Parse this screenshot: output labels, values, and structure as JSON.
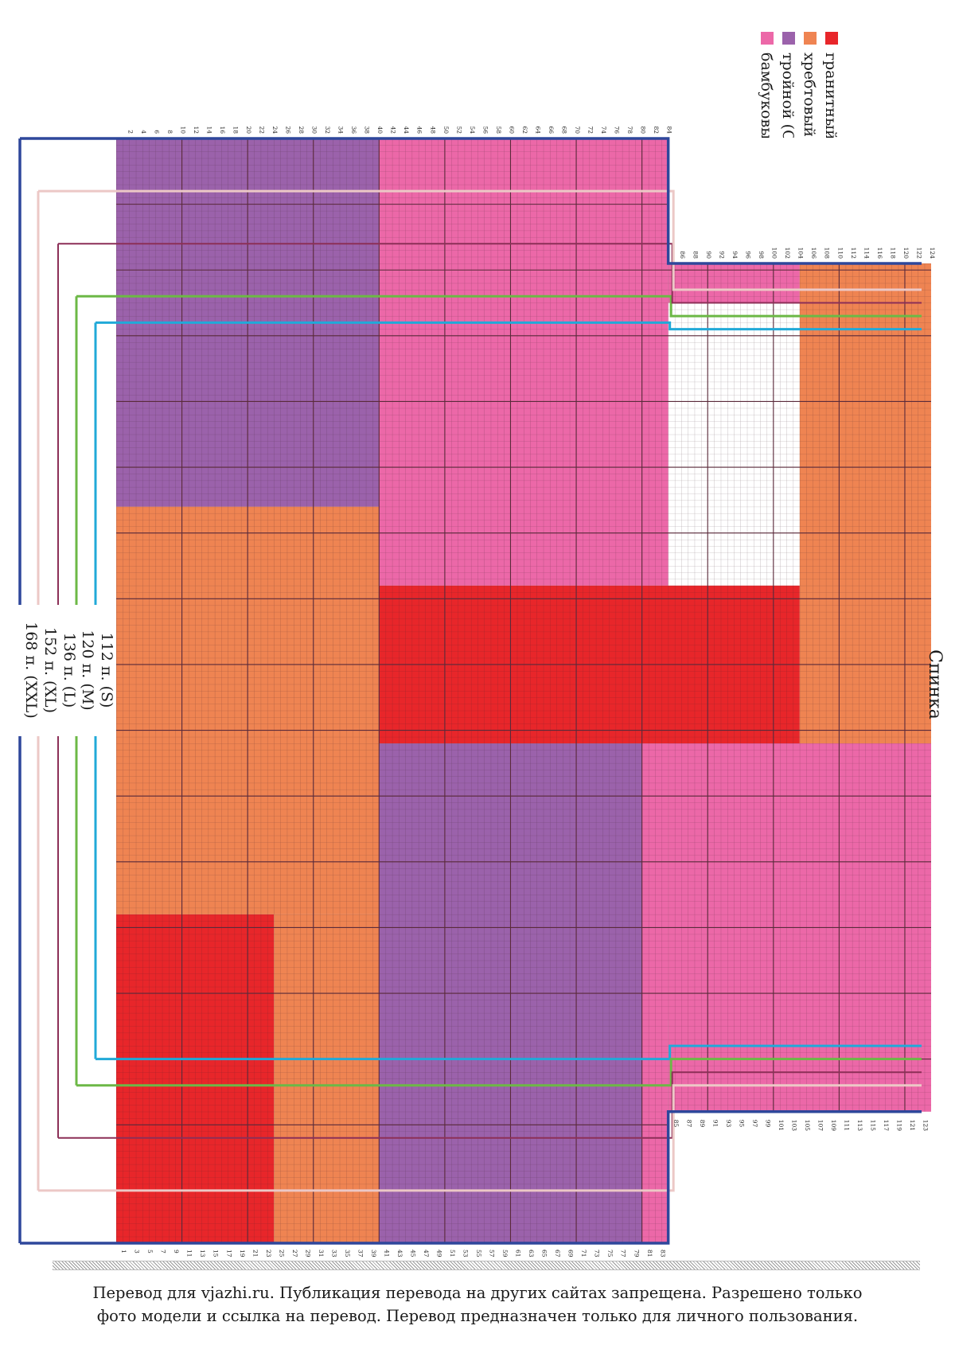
{
  "title": "Спинка",
  "legend": [
    {
      "label": "гранитный (A)",
      "color": "#e8262a"
    },
    {
      "label": "хребтовый (B)",
      "color": "#ef8452"
    },
    {
      "label": "тройной (C)",
      "color": "#9b62ab"
    },
    {
      "label": "бамбуковый (D)",
      "color": "#ec68a8"
    }
  ],
  "sizes": [
    {
      "label": "112 п. (S)",
      "color": "#21a9d8"
    },
    {
      "label": "120 п. (M)",
      "color": "#6cb846"
    },
    {
      "label": "136 п. (L)",
      "color": "#8c2f57"
    },
    {
      "label": "152 п. (XL)",
      "color": "#ecc8c6"
    },
    {
      "label": "168 п. (XXL)",
      "color": "#2e479b"
    }
  ],
  "colors": {
    "grid_major": "#5a2a3a",
    "outline": "#2e479b"
  },
  "chart_data": {
    "type": "grid-pattern",
    "stitches": 168,
    "rows": 124,
    "blocks": [
      {
        "yarn": "C",
        "st": [
          1,
          56
        ],
        "rows": [
          1,
          40
        ]
      },
      {
        "yarn": "B",
        "st": [
          57,
          118
        ],
        "rows": [
          1,
          40
        ]
      },
      {
        "yarn": "A",
        "st": [
          119,
          168
        ],
        "rows": [
          1,
          24
        ]
      },
      {
        "yarn": "B",
        "st": [
          119,
          168
        ],
        "rows": [
          25,
          40
        ]
      },
      {
        "yarn": "D",
        "st": [
          1,
          68
        ],
        "rows": [
          41,
          84
        ]
      },
      {
        "yarn": "A",
        "st": [
          69,
          92
        ],
        "rows": [
          41,
          104
        ]
      },
      {
        "yarn": "C",
        "st": [
          93,
          168
        ],
        "rows": [
          41,
          80
        ]
      },
      {
        "yarn": "D",
        "st": [
          93,
          168
        ],
        "rows": [
          81,
          84
        ]
      },
      {
        "yarn": "D",
        "st": [
          1,
          25
        ],
        "rows": [
          85,
          104
        ]
      },
      {
        "yarn": "D",
        "st": [
          93,
          168
        ],
        "rows": [
          85,
          124
        ]
      },
      {
        "yarn": "B",
        "st": [
          1,
          92
        ],
        "rows": [
          105,
          124
        ]
      },
      {
        "yarn": "D",
        "st": [
          93,
          134
        ],
        "rows": [
          85,
          124
        ]
      }
    ],
    "row_labels_left": [
      "1",
      "3",
      "5",
      "7",
      "9",
      "11",
      "13",
      "15",
      "17",
      "19",
      "21",
      "23",
      "25",
      "27",
      "29",
      "31",
      "33",
      "35",
      "37",
      "39",
      "41",
      "43",
      "45",
      "47",
      "49",
      "51",
      "53",
      "55",
      "57",
      "59",
      "61",
      "63",
      "65",
      "67",
      "69",
      "71",
      "73",
      "75",
      "77",
      "79",
      "81",
      "83",
      "85",
      "87",
      "89",
      "91",
      "93",
      "95",
      "97",
      "99",
      "101",
      "103",
      "105",
      "107",
      "109",
      "111",
      "113",
      "115",
      "117",
      "119",
      "121",
      "123"
    ],
    "row_labels_right": [
      "2",
      "4",
      "6",
      "8",
      "10",
      "12",
      "14",
      "16",
      "18",
      "20",
      "22",
      "24",
      "26",
      "28",
      "30",
      "32",
      "34",
      "36",
      "38",
      "40",
      "42",
      "44",
      "46",
      "48",
      "50",
      "52",
      "54",
      "56",
      "58",
      "60",
      "62",
      "64",
      "66",
      "68",
      "70",
      "72",
      "74",
      "76",
      "78",
      "80",
      "82",
      "84",
      "86",
      "88",
      "90",
      "92",
      "94",
      "96",
      "98",
      "100",
      "102",
      "104",
      "106",
      "108",
      "110",
      "112",
      "114",
      "116",
      "118",
      "120",
      "122",
      "124"
    ]
  },
  "footer": {
    "line1": "Перевод для vjazhi.ru. Публикация перевода на других сайтах запрещена. Разрешено только",
    "line2": "фото модели и ссылка на перевод.  Перевод предназначен только для личного пользования."
  }
}
